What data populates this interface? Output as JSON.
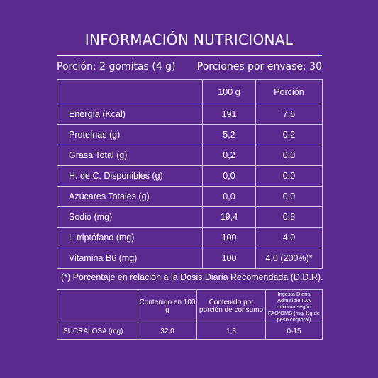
{
  "title": "INFORMACIÓN NUTRICIONAL",
  "portion": {
    "left": "Porción: 2 gomitas (4 g)",
    "right": "Porciones por envase: 30"
  },
  "table": {
    "headers": [
      "",
      "100 g",
      "Porción"
    ],
    "rows": [
      [
        "Energía (Kcal)",
        "191",
        "7,6"
      ],
      [
        "Proteínas (g)",
        "5,2",
        "0,2"
      ],
      [
        "Grasa Total (g)",
        "0,2",
        "0,0"
      ],
      [
        "H. de C. Disponibles (g)",
        "0,0",
        "0,0"
      ],
      [
        "Azúcares Totales (g)",
        "0,0",
        "0,0"
      ],
      [
        "Sodio (mg)",
        "19,4",
        "0,8"
      ],
      [
        "L-triptófano (mg)",
        "100",
        "4,0"
      ],
      [
        "Vitamina B6 (mg)",
        "100",
        "4,0 (200%)*"
      ]
    ]
  },
  "footnote": "(*) Porcentaje en relación a la Dosis Diaria Recomendada (D.D.R).",
  "sweetener_table": {
    "headers": [
      "",
      "Contenido en 100 g",
      "Contenido por porción de consumo",
      "Ingesta Diaria Admisible IDA máxima según FAO/OMS (mg/ Kg de peso corporal)"
    ],
    "row": [
      "SUCRALOSA (mg)",
      "32,0",
      "1,3",
      "0-15"
    ]
  }
}
